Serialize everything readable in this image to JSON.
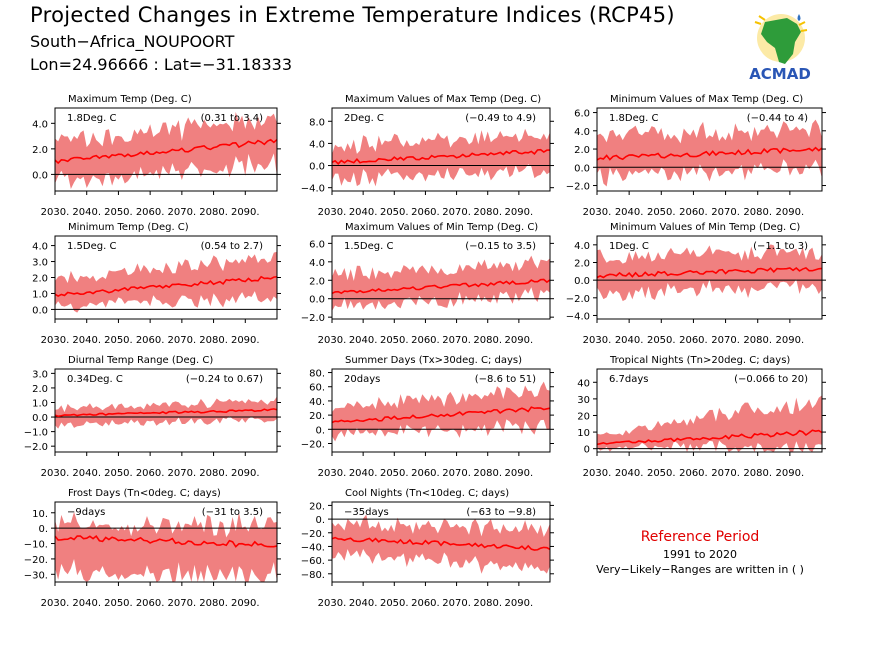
{
  "header": {
    "title": "Projected Changes in Extreme Temperature Indices (RCP45)",
    "region": "South−Africa_NOUPOORT",
    "coords": "Lon=24.96666 : Lat=−31.18333"
  },
  "logo": {
    "text": "ACMAD",
    "icon": "africa-map-icon"
  },
  "reference": {
    "title": "Reference Period",
    "period": "1991 to 2020",
    "note": "Very−Likely−Ranges are written in ( )"
  },
  "colors": {
    "band": "#f08080",
    "line": "#ff0000",
    "zero": "#000000"
  },
  "chart_data": [
    {
      "type": "area",
      "title": "Maximum Temp (Deg. C)",
      "mean_label": "1.8Deg. C",
      "range_label": "(0.31 to 3.4)",
      "x": [
        2030,
        2100
      ],
      "x_ticks": [
        "2030.",
        "2040.",
        "2050.",
        "2060.",
        "2070.",
        "2080.",
        "2090."
      ],
      "y_ticks": [
        "4.0",
        "2.0",
        "0.0"
      ],
      "y_tick_values": [
        4,
        2,
        0
      ],
      "ylim": [
        -1.3,
        5.2
      ],
      "mean_start": 1.0,
      "mean_end": 2.6,
      "lower_start": -0.6,
      "lower_end": 0.8,
      "upper_start": 2.6,
      "upper_end": 4.3
    },
    {
      "type": "area",
      "title": "Maximum Values of Max Temp (Deg. C)",
      "mean_label": "2Deg. C",
      "range_label": "(−0.49 to 4.9)",
      "x": [
        2030,
        2100
      ],
      "x_ticks": [
        "2030.",
        "2040.",
        "2050.",
        "2060.",
        "2070.",
        "2080.",
        "2090."
      ],
      "y_ticks": [
        "8.0",
        "4.0",
        "0.0",
        "−4.0"
      ],
      "y_tick_values": [
        8,
        4,
        0,
        -4
      ],
      "ylim": [
        -4.6,
        10.4
      ],
      "mean_start": 0.6,
      "mean_end": 2.6,
      "lower_start": -2.5,
      "lower_end": -0.5,
      "upper_start": 3.5,
      "upper_end": 6.0
    },
    {
      "type": "area",
      "title": "Minimum Values of Max Temp (Deg. C)",
      "mean_label": "1.8Deg. C",
      "range_label": "(−0.44 to 4)",
      "x": [
        2030,
        2100
      ],
      "x_ticks": [
        "2030.",
        "2040.",
        "2050.",
        "2060.",
        "2070.",
        "2080.",
        "2090."
      ],
      "y_ticks": [
        "6.0",
        "4.0",
        "2.0",
        "0.0",
        "−2.0"
      ],
      "y_tick_values": [
        6,
        4,
        2,
        0,
        -2
      ],
      "ylim": [
        -2.6,
        6.5
      ],
      "mean_start": 1.0,
      "mean_end": 2.0,
      "lower_start": -1.0,
      "lower_end": 0.0,
      "upper_start": 3.3,
      "upper_end": 4.3
    },
    {
      "type": "area",
      "title": "Minimum Temp (Deg. C)",
      "mean_label": "1.5Deg. C",
      "range_label": "(0.54 to 2.7)",
      "x": [
        2030,
        2100
      ],
      "x_ticks": [
        "2030.",
        "2040.",
        "2050.",
        "2060.",
        "2070.",
        "2080.",
        "2090."
      ],
      "y_ticks": [
        "4.0",
        "3.0",
        "2.0",
        "1.0",
        "0.0"
      ],
      "y_tick_values": [
        4,
        3,
        2,
        1,
        0
      ],
      "ylim": [
        -0.6,
        4.6
      ],
      "mean_start": 0.9,
      "mean_end": 2.0,
      "lower_start": 0.1,
      "lower_end": 0.9,
      "upper_start": 1.8,
      "upper_end": 3.4
    },
    {
      "type": "area",
      "title": "Maximum Values of Min Temp (Deg. C)",
      "mean_label": "1.5Deg. C",
      "range_label": "(−0.15 to 3.5)",
      "x": [
        2030,
        2100
      ],
      "x_ticks": [
        "2030.",
        "2040.",
        "2050.",
        "2060.",
        "2070.",
        "2080.",
        "2090."
      ],
      "y_ticks": [
        "6.0",
        "4.0",
        "2.0",
        "0.0",
        "−2.0"
      ],
      "y_tick_values": [
        6,
        4,
        2,
        0,
        -2
      ],
      "ylim": [
        -2.2,
        6.8
      ],
      "mean_start": 0.6,
      "mean_end": 2.0,
      "lower_start": -0.8,
      "lower_end": 0.4,
      "upper_start": 2.6,
      "upper_end": 3.8
    },
    {
      "type": "area",
      "title": "Minimum Values of Min Temp (Deg. C)",
      "mean_label": "1Deg. C",
      "range_label": "(−1.1 to 3)",
      "x": [
        2030,
        2100
      ],
      "x_ticks": [
        "2030.",
        "2040.",
        "2050.",
        "2060.",
        "2070.",
        "2080.",
        "2090."
      ],
      "y_ticks": [
        "4.0",
        "2.0",
        "0.0",
        "−2.0",
        "−4.0"
      ],
      "y_tick_values": [
        4,
        2,
        0,
        -2,
        -4
      ],
      "ylim": [
        -4.4,
        5.0
      ],
      "mean_start": 0.5,
      "mean_end": 1.3,
      "lower_start": -1.6,
      "lower_end": -0.6,
      "upper_start": 2.5,
      "upper_end": 3.3
    },
    {
      "type": "area",
      "title": "Diurnal Temp Range (Deg. C)",
      "mean_label": "0.34Deg. C",
      "range_label": "(−0.24 to 0.67)",
      "x": [
        2030,
        2100
      ],
      "x_ticks": [
        "2030.",
        "2040.",
        "2050.",
        "2060.",
        "2070.",
        "2080.",
        "2090."
      ],
      "y_ticks": [
        "3.0",
        "2.0",
        "1.0",
        "0.0",
        "−1.0",
        "−2.0"
      ],
      "y_tick_values": [
        3,
        2,
        1,
        0,
        -1,
        -2
      ],
      "ylim": [
        -2.4,
        3.3
      ],
      "mean_start": 0.1,
      "mean_end": 0.5,
      "lower_start": -0.5,
      "lower_end": -0.2,
      "upper_start": 0.6,
      "upper_end": 1.1
    },
    {
      "type": "area",
      "title": "Summer Days (Tx>30deg. C; days)",
      "mean_label": "20days",
      "range_label": "(−8.6 to 51)",
      "x": [
        2030,
        2100
      ],
      "x_ticks": [
        "2030.",
        "2040.",
        "2050.",
        "2060.",
        "2070.",
        "2080.",
        "2090."
      ],
      "y_ticks": [
        "80.",
        "60.",
        "40.",
        "20.",
        "0.",
        "−20."
      ],
      "y_tick_values": [
        80,
        60,
        40,
        20,
        0,
        -20
      ],
      "ylim": [
        -32,
        85
      ],
      "mean_start": 10,
      "mean_end": 30,
      "lower_start": -8,
      "lower_end": 5,
      "upper_start": 30,
      "upper_end": 55
    },
    {
      "type": "area",
      "title": "Tropical Nights (Tn>20deg. C; days)",
      "mean_label": "6.7days",
      "range_label": "(−0.066 to 20)",
      "x": [
        2030,
        2100
      ],
      "x_ticks": [
        "2030.",
        "2040.",
        "2050.",
        "2060.",
        "2070.",
        "2080.",
        "2090."
      ],
      "y_ticks": [
        "40",
        "30",
        "20",
        "10",
        "0"
      ],
      "y_tick_values": [
        40,
        30,
        20,
        10,
        0
      ],
      "ylim": [
        -2,
        48
      ],
      "mean_start": 3,
      "mean_end": 10,
      "lower_start": 0.5,
      "lower_end": 0.5,
      "upper_start": 8,
      "upper_end": 30
    },
    {
      "type": "area",
      "title": "Frost Days (Tn<0deg. C; days)",
      "mean_label": "−9days",
      "range_label": "(−31 to 3.5)",
      "x": [
        2030,
        2100
      ],
      "x_ticks": [
        "2030.",
        "2040.",
        "2050.",
        "2060.",
        "2070.",
        "2080.",
        "2090."
      ],
      "y_ticks": [
        "10.",
        "0.",
        "−10.",
        "−20.",
        "−30."
      ],
      "y_tick_values": [
        10,
        0,
        -10,
        -20,
        -30
      ],
      "ylim": [
        -35,
        17
      ],
      "mean_start": -6,
      "mean_end": -11,
      "lower_start": -28,
      "lower_end": -31,
      "upper_start": 3,
      "upper_end": 2
    },
    {
      "type": "area",
      "title": "Cool Nights (Tn<10deg. C; days)",
      "mean_label": "−35days",
      "range_label": "(−63 to −9.8)",
      "x": [
        2030,
        2100
      ],
      "x_ticks": [
        "2030.",
        "2040.",
        "2050.",
        "2060.",
        "2070.",
        "2080.",
        "2090."
      ],
      "y_ticks": [
        "20.",
        "0.",
        "−20.",
        "−40.",
        "−60.",
        "−80."
      ],
      "y_tick_values": [
        20,
        0,
        -20,
        -40,
        -60,
        -80
      ],
      "ylim": [
        -92,
        25
      ],
      "mean_start": -28,
      "mean_end": -43,
      "lower_start": -50,
      "lower_end": -72,
      "upper_start": -5,
      "upper_end": -15
    }
  ]
}
